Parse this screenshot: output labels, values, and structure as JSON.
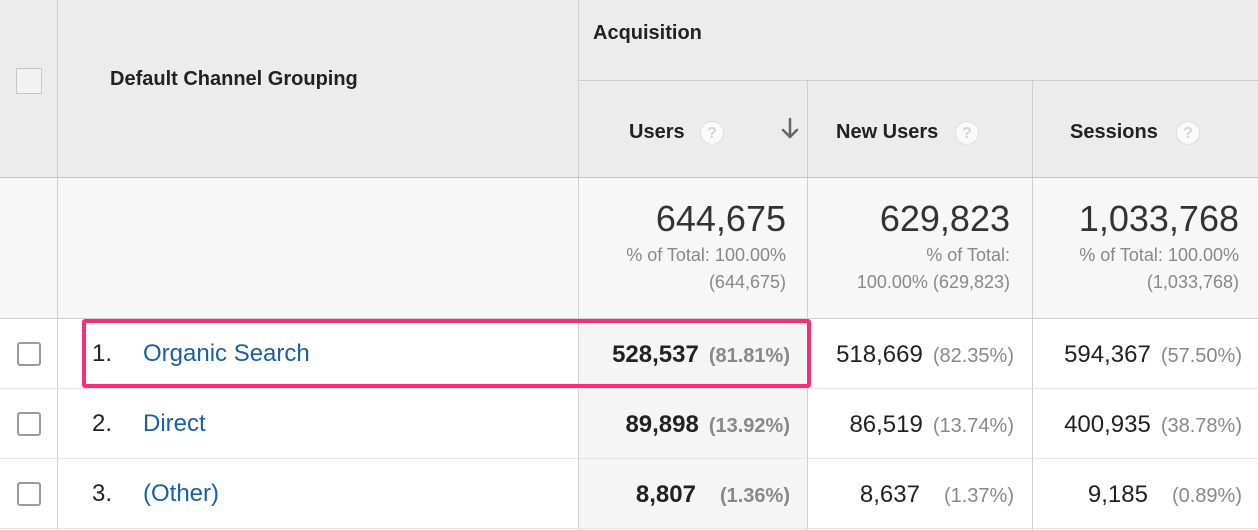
{
  "header": {
    "group_label": "Acquisition",
    "dimension_label": "Default Channel Grouping",
    "columns": [
      {
        "label": "Users",
        "sorted": true,
        "sort_direction": "descending"
      },
      {
        "label": "New Users"
      },
      {
        "label": "Sessions"
      }
    ]
  },
  "icons": {
    "help": "question-mark-circle-icon",
    "sort": "arrow-down-icon",
    "checkbox": "checkbox-icon"
  },
  "totals": [
    {
      "value": "644,675",
      "line1": "% of Total: 100.00%",
      "line2": "(644,675)"
    },
    {
      "value": "629,823",
      "line1": "% of Total:",
      "line2": "100.00% (629,823)"
    },
    {
      "value": "1,033,768",
      "line1": "% of Total: 100.00%",
      "line2": "(1,033,768)"
    }
  ],
  "rows": [
    {
      "index": "1.",
      "channel": "Organic Search",
      "users": "528,537",
      "users_pct": "(81.81%)",
      "new_users": "518,669",
      "new_users_pct": "(82.35%)",
      "sessions": "594,367",
      "sessions_pct": "(57.50%)",
      "highlighted": true
    },
    {
      "index": "2.",
      "channel": "Direct",
      "users": "89,898",
      "users_pct": "(13.92%)",
      "new_users": "86,519",
      "new_users_pct": "(13.74%)",
      "sessions": "400,935",
      "sessions_pct": "(38.78%)"
    },
    {
      "index": "3.",
      "channel": "(Other)",
      "users": "8,807",
      "users_pct": "(1.36%)",
      "new_users": "8,637",
      "new_users_pct": "(1.37%)",
      "sessions": "9,185",
      "sessions_pct": "(0.89%)"
    }
  ],
  "colors": {
    "header_bg": "#ececec",
    "sorted_column_bg": "#f5f5f5",
    "link": "#1a5fa3",
    "highlight": "#f5307a",
    "muted": "#888888"
  }
}
